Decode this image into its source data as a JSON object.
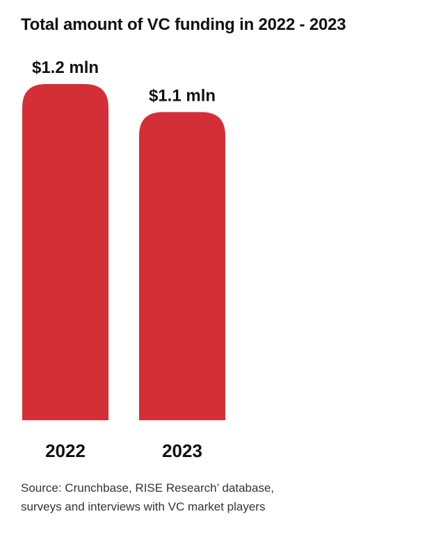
{
  "chart_data": {
    "type": "bar",
    "title": "Total amount of VC funding in 2022 - 2023",
    "categories": [
      "2022",
      "2023"
    ],
    "values": [
      1.2,
      1.1
    ],
    "value_labels": [
      "$1.2 mln",
      "$1.1 mln"
    ],
    "xlabel": "",
    "ylabel": "",
    "ylim": [
      0,
      1.2
    ],
    "grid": false,
    "bar_color": "#d42f37"
  },
  "source": {
    "line1": "Source: Crunchbase, RISE Research’ database,",
    "line2": "surveys and interviews with VC market players"
  }
}
